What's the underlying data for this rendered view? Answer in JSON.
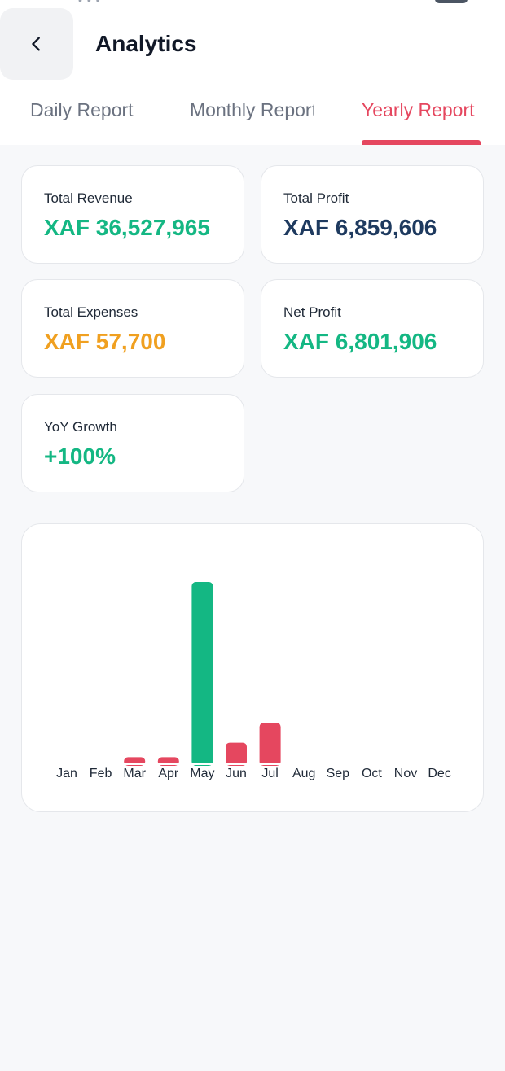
{
  "header": {
    "title": "Analytics",
    "back_icon": "chevron-left-icon"
  },
  "tabs": [
    {
      "label": "Daily Report",
      "active": false
    },
    {
      "label": "Monthly Report",
      "active": false
    },
    {
      "label": "Yearly Report",
      "active": true
    }
  ],
  "colors": {
    "accent": "#e5475f",
    "green": "#14b783",
    "navy": "#1e3a5f",
    "orange": "#f0a020"
  },
  "stats": {
    "total_revenue": {
      "label": "Total Revenue",
      "value": "XAF 36,527,965"
    },
    "total_profit": {
      "label": "Total Profit",
      "value": "XAF 6,859,606"
    },
    "total_expenses": {
      "label": "Total Expenses",
      "value": "XAF 57,700"
    },
    "net_profit": {
      "label": "Net Profit",
      "value": "XAF 6,801,906"
    },
    "yoy_growth": {
      "label": "YoY Growth",
      "value": "+100%"
    }
  },
  "chart_data": {
    "type": "bar",
    "categories": [
      "Jan",
      "Feb",
      "Mar",
      "Apr",
      "May",
      "Jun",
      "Jul",
      "Aug",
      "Sep",
      "Oct",
      "Nov",
      "Dec"
    ],
    "values": [
      0,
      0,
      0.03,
      0.03,
      1.0,
      0.11,
      0.22,
      0,
      0,
      0,
      0,
      0
    ],
    "colors": [
      "#e5475f",
      "#e5475f",
      "#e5475f",
      "#e5475f",
      "#14b783",
      "#e5475f",
      "#e5475f",
      "#e5475f",
      "#e5475f",
      "#e5475f",
      "#e5475f",
      "#e5475f"
    ],
    "ylim": [
      0,
      1
    ],
    "grid": false,
    "title": "",
    "xlabel": "",
    "ylabel": ""
  }
}
